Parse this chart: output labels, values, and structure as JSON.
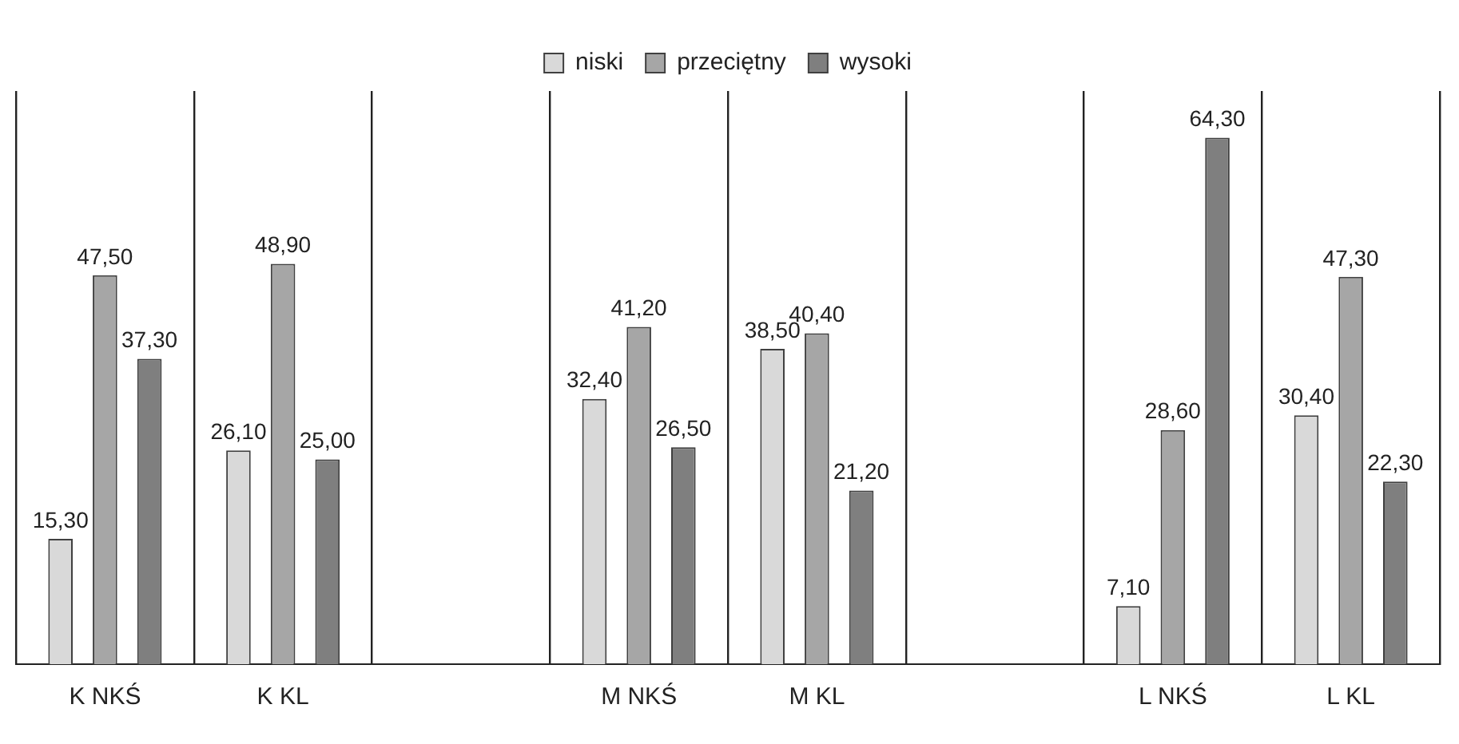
{
  "chart_data": {
    "type": "bar",
    "categories": [
      "K NKŚ",
      "K KL",
      null,
      "M NKŚ",
      "M KL",
      null,
      "L NKŚ",
      "L KL"
    ],
    "series": [
      {
        "name": "niski",
        "color": "#d9d9d9",
        "values": [
          15.3,
          26.1,
          null,
          32.4,
          38.5,
          null,
          7.1,
          30.4
        ],
        "value_labels": [
          "15,30",
          "26,10",
          null,
          "32,40",
          "38,50",
          null,
          "7,10",
          "30,40"
        ]
      },
      {
        "name": "przeciętny",
        "color": "#a6a6a6",
        "values": [
          47.5,
          48.9,
          null,
          41.2,
          40.4,
          null,
          28.6,
          47.3
        ],
        "value_labels": [
          "47,50",
          "48,90",
          null,
          "41,20",
          "40,40",
          null,
          "28,60",
          "47,30"
        ]
      },
      {
        "name": "wysoki",
        "color": "#7f7f7f",
        "values": [
          37.3,
          25.0,
          null,
          26.5,
          21.2,
          null,
          64.3,
          22.3
        ],
        "value_labels": [
          "37,30",
          "25,00",
          null,
          "26,50",
          "21,20",
          null,
          "64,30",
          "22,30"
        ]
      }
    ],
    "grid": "x",
    "legend": "top"
  }
}
